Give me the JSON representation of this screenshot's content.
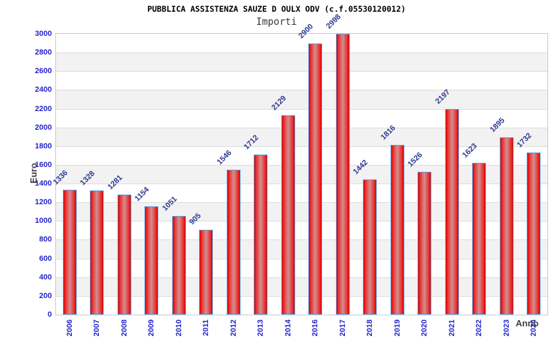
{
  "chart_data": {
    "type": "bar",
    "title": "PUBBLICA ASSISTENZA SAUZE D OULX ODV (c.f.05530120012)",
    "subtitle": "Importi",
    "xlabel": "Anno",
    "ylabel": "Euro",
    "categories": [
      "2006",
      "2007",
      "2008",
      "2009",
      "2010",
      "2011",
      "2012",
      "2013",
      "2014",
      "2016",
      "2017",
      "2018",
      "2019",
      "2020",
      "2021",
      "2022",
      "2023",
      "2024"
    ],
    "values": [
      1336,
      1328,
      1281,
      1154,
      1051,
      905,
      1546,
      1712,
      2129,
      2900,
      2998,
      1442,
      1816,
      1526,
      2197,
      1623,
      1895,
      1732
    ],
    "ylim": [
      0,
      3000
    ],
    "ytick_step": 200,
    "grid": true,
    "legend_position": "none",
    "colors": {
      "tick_label": "#2424cc",
      "value_label": "#2c3893",
      "bar_border": "#649bd8",
      "bar_edge": "#d40000",
      "bar_bright": "#ee2b2b",
      "bar_mid": "#d09090",
      "band_alt": "#f2f2f2",
      "band_main": "#ffffff",
      "grid_line": "#dcdcdc",
      "plot_border": "#c9c9c9",
      "title_color": "#000000",
      "subtitle_color": "#3a3a3a",
      "axis_title_color": "#3f3f3f"
    }
  }
}
